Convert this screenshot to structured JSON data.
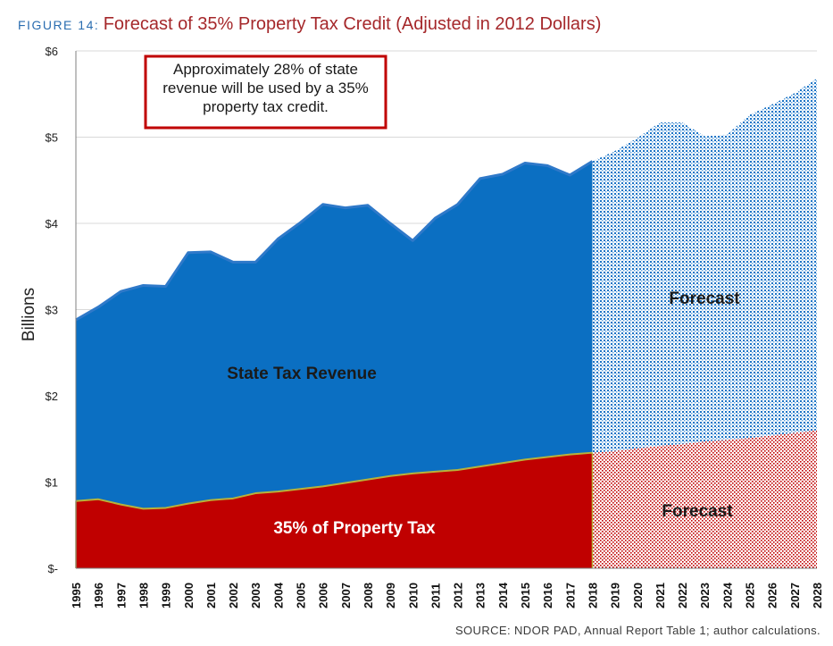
{
  "figure": {
    "label": "FIGURE 14:",
    "title": "Forecast of 35% Property Tax Credit (Adjusted in 2012 Dollars)"
  },
  "source": "SOURCE:  NDOR PAD, Annual Report Table 1; author calculations.",
  "colors": {
    "state_revenue": "#0b6fc2",
    "state_revenue_line": "#2f79c9",
    "property_tax": "#c00000",
    "forecast_blue_dot": "#1b74c6",
    "forecast_red_dot": "#c00000",
    "annotation_border": "#c00000",
    "grid": "#d9d9d9"
  },
  "chart_data": {
    "type": "area",
    "x": [
      "1995",
      "1996",
      "1997",
      "1998",
      "1999",
      "2000",
      "2001",
      "2002",
      "2003",
      "2004",
      "2005",
      "2006",
      "2007",
      "2008",
      "2009",
      "2010",
      "2011",
      "2012",
      "2013",
      "2014",
      "2015",
      "2016",
      "2017",
      "2018",
      "2019",
      "2020",
      "2021",
      "2022",
      "2023",
      "2024",
      "2025",
      "2026",
      "2027",
      "2028"
    ],
    "series": [
      {
        "name": "State Tax Revenue",
        "values": [
          2.88,
          3.03,
          3.21,
          3.28,
          3.27,
          3.66,
          3.67,
          3.55,
          3.55,
          3.82,
          4.01,
          4.22,
          4.18,
          4.21,
          4.0,
          3.8,
          4.06,
          4.22,
          4.52,
          4.57,
          4.7,
          4.67,
          4.56,
          4.72,
          4.84,
          4.99,
          5.17,
          5.17,
          5.01,
          5.03,
          5.26,
          5.38,
          5.51,
          5.68
        ],
        "forecast_from": "2018"
      },
      {
        "name": "35% of Property Tax",
        "values": [
          0.78,
          0.8,
          0.74,
          0.69,
          0.7,
          0.75,
          0.79,
          0.81,
          0.87,
          0.89,
          0.92,
          0.95,
          0.99,
          1.03,
          1.07,
          1.1,
          1.12,
          1.14,
          1.18,
          1.22,
          1.26,
          1.29,
          1.32,
          1.34,
          1.36,
          1.39,
          1.42,
          1.44,
          1.47,
          1.49,
          1.51,
          1.54,
          1.57,
          1.6
        ],
        "forecast_from": "2018"
      }
    ],
    "ylabel": "Billions",
    "ylim": [
      0,
      6
    ],
    "yticks": [
      {
        "value": 0,
        "label": "$-"
      },
      {
        "value": 1,
        "label": "$1"
      },
      {
        "value": 2,
        "label": "$2"
      },
      {
        "value": 3,
        "label": "$3"
      },
      {
        "value": 4,
        "label": "$4"
      },
      {
        "value": 5,
        "label": "$5"
      },
      {
        "value": 6,
        "label": "$6"
      }
    ],
    "grid": true,
    "labels": {
      "state_revenue": "State Tax Revenue",
      "property_tax": "35% of Property Tax",
      "forecast_upper": "Forecast",
      "forecast_lower": "Forecast"
    },
    "annotation": "Approximately 28% of state revenue will be used by a 35% property tax credit."
  }
}
